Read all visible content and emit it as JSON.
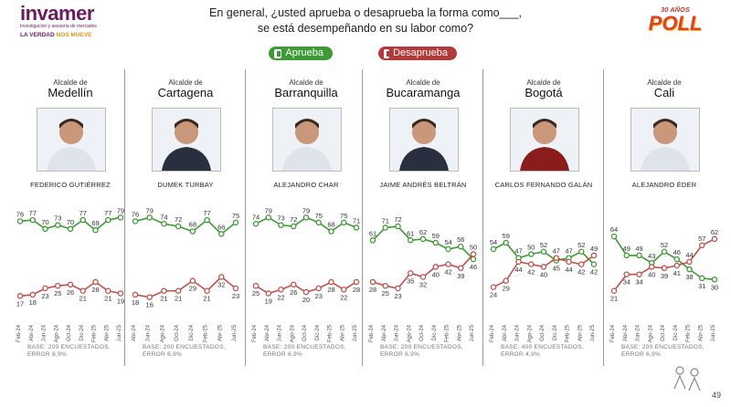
{
  "header": {
    "logo_name": "invamer",
    "logo_sub": "Investigación y asesoría de mercados",
    "logo_tag_a": "LA VERDAD",
    "logo_tag_b": "NOS MUEVE",
    "question_line1": "En general, ¿usted aprueba o desaprueba la forma como___,",
    "question_line2": "se está desempeñando en su labor como?",
    "poll_top": "30 AÑOS",
    "poll_main": "POLL"
  },
  "legend": {
    "approve": "Aprueba",
    "disapprove": "Desaprueba"
  },
  "colors": {
    "approve": "#3d9a34",
    "disapprove": "#c0504d",
    "approve_pill": "#3d9a34",
    "disapprove_pill": "#b33a3a"
  },
  "page_number": "49",
  "chart_data": [
    {
      "type": "line",
      "title_small": "Alcalde de",
      "title": "Medellín",
      "person": "FEDERICO GUTIÉRREZ",
      "x": [
        "Feb-24",
        "Abr-24",
        "Jun-24",
        "Ago-24",
        "Oct-24",
        "Dic-24",
        "Feb-25",
        "Abr-25",
        "Jun-25"
      ],
      "series": [
        {
          "name": "Aprueba",
          "values": [
            76,
            77,
            70,
            73,
            70,
            77,
            69,
            77,
            79
          ]
        },
        {
          "name": "Desaprueba",
          "values": [
            17,
            18,
            23,
            25,
            26,
            21,
            28,
            21,
            19
          ]
        }
      ],
      "ylim": [
        0,
        100
      ],
      "base": [
        "BASE: 200 ENCUESTADOS,",
        "ERROR 6,9%"
      ]
    },
    {
      "type": "line",
      "title_small": "Alcalde de",
      "title": "Cartagena",
      "person": "DUMEK TURBAY",
      "x": [
        "Abr-24",
        "Jun-24",
        "Ago-24",
        "Oct-24",
        "Dic-24",
        "Feb-25",
        "Abr-25",
        "Jun-25"
      ],
      "series": [
        {
          "name": "Aprueba",
          "values": [
            76,
            79,
            74,
            72,
            68,
            77,
            66,
            75
          ]
        },
        {
          "name": "Desaprueba",
          "values": [
            18,
            16,
            21,
            21,
            29,
            21,
            32,
            23
          ]
        }
      ],
      "ylim": [
        0,
        100
      ],
      "base": [
        "BASE: 200 ENCUESTADOS,",
        "ERROR 6,9%"
      ]
    },
    {
      "type": "line",
      "title_small": "Alcalde de",
      "title": "Barranquilla",
      "person": "ALEJANDRO CHAR",
      "x": [
        "Feb-24",
        "Abr-24",
        "Jun-24",
        "Ago-24",
        "Oct-24",
        "Dic-24",
        "Feb-25",
        "Abr-25",
        "Jun-25"
      ],
      "series": [
        {
          "name": "Aprueba",
          "values": [
            74,
            79,
            73,
            72,
            79,
            75,
            68,
            75,
            71
          ]
        },
        {
          "name": "Desaprueba",
          "values": [
            25,
            19,
            22,
            26,
            20,
            23,
            28,
            22,
            28
          ]
        }
      ],
      "ylim": [
        0,
        100
      ],
      "base": [
        "BASE: 200 ENCUESTADOS,",
        "ERROR 6,9%"
      ]
    },
    {
      "type": "line",
      "title_small": "Alcalde de",
      "title": "Bucaramanga",
      "person": "JAIME ANDRÉS BELTRÁN",
      "x": [
        "Feb-24",
        "Abr-24",
        "Jun-24",
        "Ago-24",
        "Oct-24",
        "Dic-24",
        "Feb-25",
        "Abr-25",
        "Jun-25"
      ],
      "series": [
        {
          "name": "Aprueba",
          "values": [
            61,
            71,
            72,
            61,
            62,
            59,
            54,
            56,
            46
          ]
        },
        {
          "name": "Desaprueba",
          "values": [
            28,
            25,
            23,
            35,
            32,
            40,
            42,
            39,
            50
          ]
        }
      ],
      "ylim": [
        0,
        100
      ],
      "base": [
        "BASE: 200 ENCUESTADOS,",
        "ERROR 6,9%"
      ]
    },
    {
      "type": "line",
      "title_small": "Alcalde de",
      "title": "Bogotá",
      "person": "CARLOS FERNANDO GALÁN",
      "x": [
        "Feb-24",
        "Abr-24",
        "Jun-24",
        "Ago-24",
        "Oct-24",
        "Dic-24",
        "Feb-25",
        "Abr-25",
        "Jun-25"
      ],
      "series": [
        {
          "name": "Aprueba",
          "values": [
            54,
            59,
            47,
            50,
            52,
            45,
            47,
            52,
            42
          ]
        },
        {
          "name": "Desaprueba",
          "values": [
            24,
            29,
            44,
            42,
            40,
            47,
            44,
            42,
            49
          ]
        }
      ],
      "ylim": [
        0,
        100
      ],
      "base": [
        "BASE: 400 ENCUESTADOS,",
        "ERROR 4,9%"
      ]
    },
    {
      "type": "line",
      "title_small": "Alcalde de",
      "title": "Cali",
      "person": "ALEJANDRO ÉDER",
      "x": [
        "Feb-24",
        "Abr-24",
        "Jun-24",
        "Ago-24",
        "Oct-24",
        "Dic-24",
        "Feb-25",
        "Abr-25",
        "Jun-25"
      ],
      "series": [
        {
          "name": "Aprueba",
          "values": [
            64,
            49,
            49,
            43,
            52,
            46,
            38,
            31,
            30
          ]
        },
        {
          "name": "Desaprueba",
          "values": [
            21,
            34,
            34,
            40,
            39,
            41,
            44,
            57,
            62
          ]
        }
      ],
      "ylim": [
        0,
        100
      ],
      "base": [
        "BASE: 200 ENCUESTADOS,",
        "ERROR 6,9%"
      ]
    }
  ]
}
